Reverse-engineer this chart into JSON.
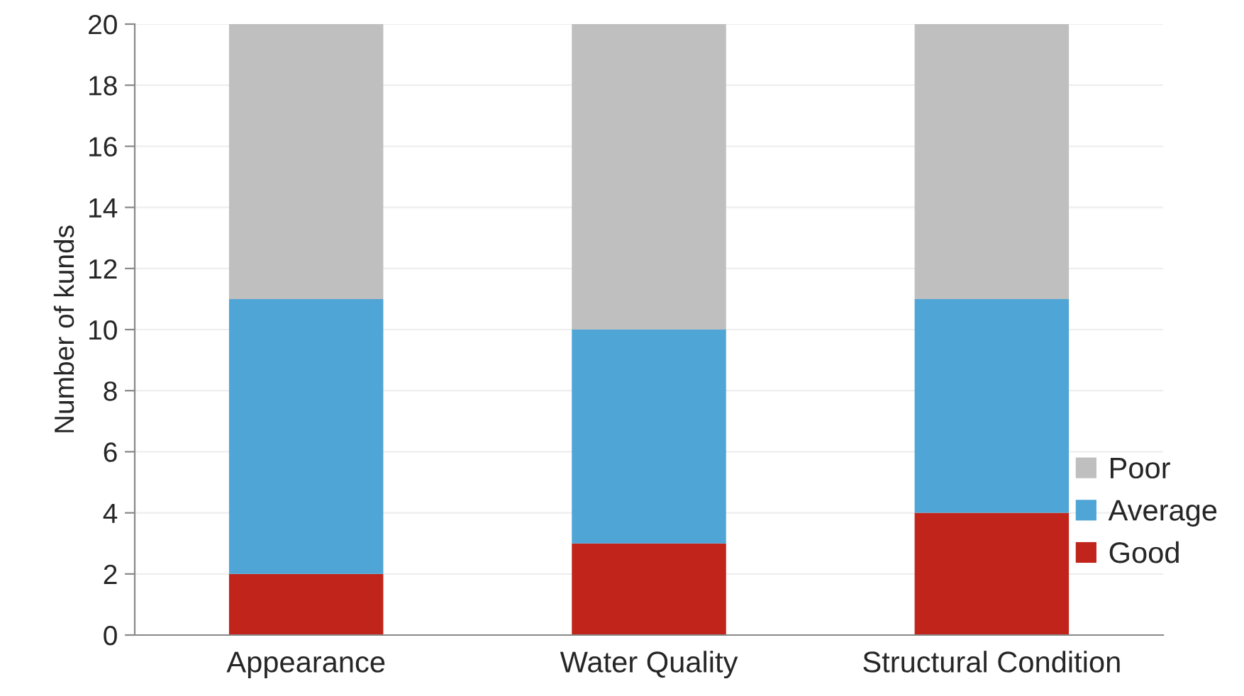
{
  "chart_data": {
    "type": "bar",
    "ylabel": "Number of kunds",
    "categories": [
      "Appearance",
      "Water Quality",
      "Structural Condition"
    ],
    "stacked": true,
    "ylim": [
      0,
      20
    ],
    "yticks": [
      0,
      2,
      4,
      6,
      8,
      10,
      12,
      14,
      16,
      18,
      20
    ],
    "grid": "y",
    "legend": "right",
    "series": [
      {
        "name": "Good",
        "color": "#c0241a",
        "values": [
          2,
          3,
          4
        ]
      },
      {
        "name": "Average",
        "color": "#4fa5d5",
        "values": [
          9,
          7,
          7
        ]
      },
      {
        "name": "Poor",
        "color": "#bfbfbf",
        "values": [
          9,
          10,
          9
        ]
      }
    ]
  }
}
